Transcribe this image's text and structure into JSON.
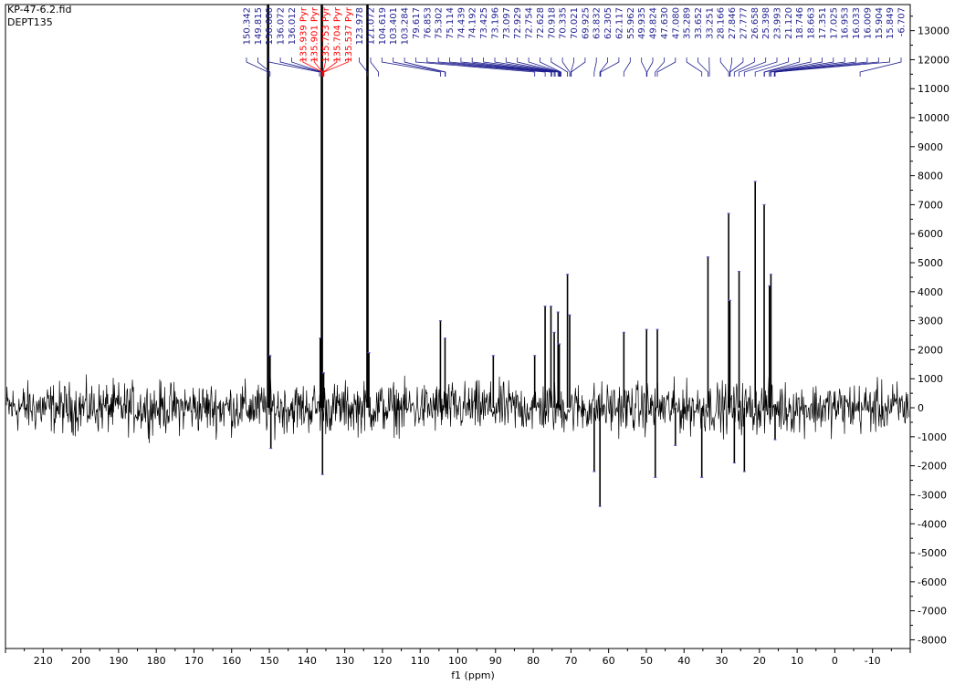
{
  "header": {
    "filename": "KP-47-6.2.fid",
    "experiment": "DEPT135"
  },
  "chart_data": {
    "type": "line",
    "title": "",
    "xlabel": "f1 (ppm)",
    "ylabel": "",
    "xlim": [
      220,
      -20
    ],
    "ylim": [
      -8300,
      13900
    ],
    "x_ticks": [
      210,
      200,
      190,
      180,
      170,
      160,
      150,
      140,
      130,
      120,
      110,
      100,
      90,
      80,
      70,
      60,
      50,
      40,
      30,
      20,
      10,
      0,
      -10
    ],
    "y_ticks": [
      13000,
      12000,
      11000,
      10000,
      9000,
      8000,
      7000,
      6000,
      5000,
      4000,
      3000,
      2000,
      1000,
      0,
      -1000,
      -2000,
      -3000,
      -4000,
      -5000,
      -6000,
      -7000,
      -8000
    ],
    "grid": false,
    "noise_amplitude": 900,
    "peaks": [
      {
        "ppm": 150.342,
        "intensity": 14500
      },
      {
        "ppm": 149.815,
        "intensity": 1800
      },
      {
        "ppm": 149.6,
        "intensity": -1400
      },
      {
        "ppm": 136.5,
        "intensity": 2400
      },
      {
        "ppm": 136.072,
        "intensity": 14500
      },
      {
        "ppm": 135.9,
        "intensity": -2300
      },
      {
        "ppm": 135.6,
        "intensity": 1200
      },
      {
        "ppm": 123.978,
        "intensity": 14500
      },
      {
        "ppm": 123.6,
        "intensity": 1900
      },
      {
        "ppm": 104.619,
        "intensity": 3000
      },
      {
        "ppm": 103.401,
        "intensity": 2400
      },
      {
        "ppm": 90.6,
        "intensity": 1800
      },
      {
        "ppm": 79.617,
        "intensity": 1800
      },
      {
        "ppm": 76.853,
        "intensity": 3500
      },
      {
        "ppm": 75.302,
        "intensity": 3500
      },
      {
        "ppm": 74.439,
        "intensity": 2600
      },
      {
        "ppm": 73.425,
        "intensity": 3300
      },
      {
        "ppm": 73.097,
        "intensity": 2200
      },
      {
        "ppm": 70.918,
        "intensity": 4600
      },
      {
        "ppm": 70.335,
        "intensity": 3200
      },
      {
        "ppm": 63.832,
        "intensity": -2200
      },
      {
        "ppm": 62.305,
        "intensity": -3400
      },
      {
        "ppm": 55.962,
        "intensity": 2600
      },
      {
        "ppm": 49.935,
        "intensity": 2700
      },
      {
        "ppm": 47.63,
        "intensity": -2400
      },
      {
        "ppm": 47.08,
        "intensity": 2700
      },
      {
        "ppm": 42.3,
        "intensity": -1300
      },
      {
        "ppm": 35.289,
        "intensity": -2400
      },
      {
        "ppm": 33.652,
        "intensity": 5200
      },
      {
        "ppm": 28.166,
        "intensity": 6700
      },
      {
        "ppm": 27.846,
        "intensity": 3700
      },
      {
        "ppm": 26.658,
        "intensity": -1900
      },
      {
        "ppm": 25.398,
        "intensity": 4700
      },
      {
        "ppm": 23.993,
        "intensity": -2200
      },
      {
        "ppm": 21.12,
        "intensity": 7800
      },
      {
        "ppm": 18.746,
        "intensity": 7000
      },
      {
        "ppm": 17.351,
        "intensity": 4200
      },
      {
        "ppm": 16.953,
        "intensity": 4600
      },
      {
        "ppm": 15.849,
        "intensity": -1100
      }
    ],
    "peak_labels": [
      {
        "text": "150.342",
        "ppm": 150.342,
        "color": "#1f1f8f"
      },
      {
        "text": "149.815",
        "ppm": 149.815,
        "color": "#1f1f8f"
      },
      {
        "text": "136.680",
        "ppm": 136.68,
        "color": "#1f1f8f"
      },
      {
        "text": "136.072",
        "ppm": 136.072,
        "color": "#1f1f8f"
      },
      {
        "text": "136.012",
        "ppm": 136.012,
        "color": "#1f1f8f"
      },
      {
        "text": "135.939 Pyr",
        "ppm": 135.939,
        "color": "#ff0000"
      },
      {
        "text": "135.901 Pyr",
        "ppm": 135.901,
        "color": "#ff0000"
      },
      {
        "text": "135.753 Pyr",
        "ppm": 135.753,
        "color": "#ff0000"
      },
      {
        "text": "135.704 Pyr",
        "ppm": 135.704,
        "color": "#ff0000"
      },
      {
        "text": "135.537 Pyr",
        "ppm": 135.537,
        "color": "#ff0000"
      },
      {
        "text": "123.978",
        "ppm": 123.978,
        "color": "#1f1f8f"
      },
      {
        "text": "121.072",
        "ppm": 121.072,
        "color": "#1f1f8f"
      },
      {
        "text": "104.619",
        "ppm": 104.619,
        "color": "#1f1f8f"
      },
      {
        "text": "103.401",
        "ppm": 103.401,
        "color": "#1f1f8f"
      },
      {
        "text": "103.284",
        "ppm": 103.284,
        "color": "#1f1f8f"
      },
      {
        "text": "79.617",
        "ppm": 79.617,
        "color": "#1f1f8f"
      },
      {
        "text": "76.853",
        "ppm": 76.853,
        "color": "#1f1f8f"
      },
      {
        "text": "75.302",
        "ppm": 75.302,
        "color": "#1f1f8f"
      },
      {
        "text": "75.114",
        "ppm": 75.114,
        "color": "#1f1f8f"
      },
      {
        "text": "74.439",
        "ppm": 74.439,
        "color": "#1f1f8f"
      },
      {
        "text": "74.192",
        "ppm": 74.192,
        "color": "#1f1f8f"
      },
      {
        "text": "73.425",
        "ppm": 73.425,
        "color": "#1f1f8f"
      },
      {
        "text": "73.196",
        "ppm": 73.196,
        "color": "#1f1f8f"
      },
      {
        "text": "73.097",
        "ppm": 73.097,
        "color": "#1f1f8f"
      },
      {
        "text": "72.929",
        "ppm": 72.929,
        "color": "#1f1f8f"
      },
      {
        "text": "72.754",
        "ppm": 72.754,
        "color": "#1f1f8f"
      },
      {
        "text": "72.628",
        "ppm": 72.628,
        "color": "#1f1f8f"
      },
      {
        "text": "70.918",
        "ppm": 70.918,
        "color": "#1f1f8f"
      },
      {
        "text": "70.335",
        "ppm": 70.335,
        "color": "#1f1f8f"
      },
      {
        "text": "70.021",
        "ppm": 70.021,
        "color": "#1f1f8f"
      },
      {
        "text": "69.925",
        "ppm": 69.925,
        "color": "#1f1f8f"
      },
      {
        "text": "63.832",
        "ppm": 63.832,
        "color": "#1f1f8f"
      },
      {
        "text": "62.305",
        "ppm": 62.305,
        "color": "#1f1f8f"
      },
      {
        "text": "62.117",
        "ppm": 62.117,
        "color": "#1f1f8f"
      },
      {
        "text": "55.962",
        "ppm": 55.962,
        "color": "#1f1f8f"
      },
      {
        "text": "49.935",
        "ppm": 49.935,
        "color": "#1f1f8f"
      },
      {
        "text": "49.824",
        "ppm": 49.824,
        "color": "#1f1f8f"
      },
      {
        "text": "47.630",
        "ppm": 47.63,
        "color": "#1f1f8f"
      },
      {
        "text": "47.080",
        "ppm": 47.08,
        "color": "#1f1f8f"
      },
      {
        "text": "35.289",
        "ppm": 35.289,
        "color": "#1f1f8f"
      },
      {
        "text": "33.652",
        "ppm": 33.652,
        "color": "#1f1f8f"
      },
      {
        "text": "33.251",
        "ppm": 33.251,
        "color": "#1f1f8f"
      },
      {
        "text": "28.166",
        "ppm": 28.166,
        "color": "#1f1f8f"
      },
      {
        "text": "27.846",
        "ppm": 27.846,
        "color": "#1f1f8f"
      },
      {
        "text": "27.777",
        "ppm": 27.777,
        "color": "#1f1f8f"
      },
      {
        "text": "26.658",
        "ppm": 26.658,
        "color": "#1f1f8f"
      },
      {
        "text": "25.398",
        "ppm": 25.398,
        "color": "#1f1f8f"
      },
      {
        "text": "23.993",
        "ppm": 23.993,
        "color": "#1f1f8f"
      },
      {
        "text": "21.120",
        "ppm": 21.12,
        "color": "#1f1f8f"
      },
      {
        "text": "18.746",
        "ppm": 18.746,
        "color": "#1f1f8f"
      },
      {
        "text": "18.663",
        "ppm": 18.663,
        "color": "#1f1f8f"
      },
      {
        "text": "17.351",
        "ppm": 17.351,
        "color": "#1f1f8f"
      },
      {
        "text": "17.025",
        "ppm": 17.025,
        "color": "#1f1f8f"
      },
      {
        "text": "16.953",
        "ppm": 16.953,
        "color": "#1f1f8f"
      },
      {
        "text": "16.033",
        "ppm": 16.033,
        "color": "#1f1f8f"
      },
      {
        "text": "16.009",
        "ppm": 16.009,
        "color": "#1f1f8f"
      },
      {
        "text": "15.904",
        "ppm": 15.904,
        "color": "#1f1f8f"
      },
      {
        "text": "15.849",
        "ppm": 15.849,
        "color": "#1f1f8f"
      },
      {
        "text": "-6.707",
        "ppm": -6.707,
        "color": "#1f1f8f"
      }
    ],
    "colors": {
      "spectrum": "#000000",
      "label_default": "#1f1f8f",
      "label_highlight": "#ff0000",
      "marker": "#5a5acd",
      "frame": "#000000"
    }
  }
}
